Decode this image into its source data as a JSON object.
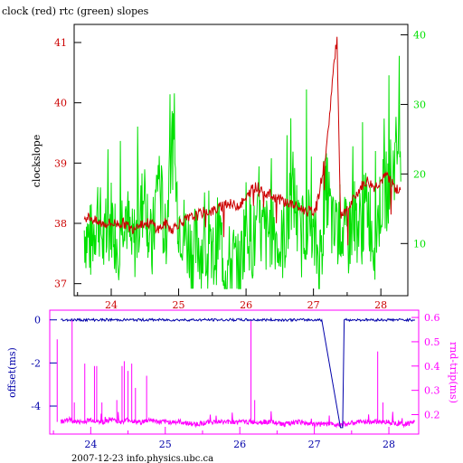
{
  "colors": {
    "background": "#ffffff",
    "axis": "#000000",
    "clock": "#cc0000",
    "rtc": "#00e000",
    "offset": "#0000aa",
    "rndtrip": "#ff00ff"
  },
  "footer": "2007-12-23 info.physics.ubc.ca",
  "chart_data": [
    {
      "type": "line",
      "title": "clock (red) rtc (green) slopes",
      "ylabel": "clockslope",
      "xlim": [
        23.45,
        28.4
      ],
      "ylim": [
        36.8,
        41.3
      ],
      "y2lim": [
        2.5,
        41.5
      ],
      "x_ticks": [
        "24",
        "25",
        "26",
        "27",
        "28"
      ],
      "y_ticks": [
        "37",
        "38",
        "39",
        "40",
        "41"
      ],
      "y2_ticks": [
        "10",
        "20",
        "30",
        "40"
      ],
      "grid": false,
      "series": [
        {
          "axis": "left",
          "x": [
            23.6,
            23.7,
            23.8,
            23.9,
            24.0,
            24.1,
            24.2,
            24.3,
            24.4,
            24.5,
            24.6,
            24.7,
            24.8,
            24.9,
            25.0,
            25.1,
            25.2,
            25.3,
            25.4,
            25.5,
            25.6,
            25.7,
            25.8,
            25.9,
            26.0,
            26.1,
            26.2,
            26.3,
            26.4,
            26.5,
            26.6,
            26.7,
            26.8,
            26.9,
            27.0,
            27.05,
            27.1,
            27.2,
            27.3,
            27.35,
            27.4,
            27.5,
            27.6,
            27.7,
            27.8,
            27.9,
            28.0,
            28.1,
            28.2,
            28.3
          ],
          "y": [
            38.1,
            38.1,
            38.0,
            38.0,
            38.0,
            38.0,
            38.0,
            37.9,
            38.0,
            38.0,
            38.0,
            37.9,
            38.0,
            37.9,
            38.0,
            38.05,
            38.1,
            38.15,
            38.2,
            38.2,
            38.25,
            38.35,
            38.3,
            38.3,
            38.4,
            38.6,
            38.6,
            38.5,
            38.45,
            38.4,
            38.35,
            38.3,
            38.25,
            38.2,
            38.2,
            38.3,
            38.6,
            39.3,
            40.6,
            41.05,
            38.1,
            38.2,
            38.4,
            38.6,
            38.7,
            38.6,
            38.7,
            38.8,
            38.6,
            38.5
          ]
        },
        {
          "axis": "right",
          "x": [
            23.6,
            23.7,
            23.8,
            23.9,
            24.0,
            24.1,
            24.2,
            24.3,
            24.4,
            24.5,
            24.6,
            24.7,
            24.8,
            24.9,
            25.0,
            25.1,
            25.2,
            25.3,
            25.4,
            25.5,
            25.6,
            25.7,
            25.8,
            25.9,
            26.0,
            26.1,
            26.2,
            26.3,
            26.4,
            26.5,
            26.6,
            26.7,
            26.8,
            26.9,
            27.0,
            27.1,
            27.2,
            27.3,
            27.4,
            27.5,
            27.6,
            27.7,
            27.8,
            27.9,
            28.0,
            28.1,
            28.2,
            28.3
          ],
          "y": [
            12,
            10,
            15,
            9,
            14,
            10,
            16,
            9,
            12,
            18,
            8,
            21,
            10,
            25,
            14,
            11,
            9,
            10,
            8,
            7,
            12,
            6,
            8,
            5,
            14,
            10,
            12,
            11,
            13,
            9,
            12,
            18,
            10,
            14,
            10,
            8,
            18,
            11,
            13,
            10,
            14,
            12,
            16,
            10,
            16,
            18,
            22,
            25
          ]
        }
      ]
    },
    {
      "type": "line",
      "xlim": [
        23.45,
        28.4
      ],
      "ylim": [
        -5.3,
        0.45
      ],
      "y2lim": [
        0.12,
        0.63
      ],
      "x_ticks": [
        "24",
        "25",
        "26",
        "27",
        "28"
      ],
      "y_ticks": [
        "0",
        "-2",
        "-4"
      ],
      "y2_ticks": [
        "0.2",
        "0.3",
        "0.4",
        "0.5",
        "0.6"
      ],
      "ylabel": "offset(ms)",
      "y2label": "rnd-trip(ms)",
      "grid": false,
      "series": [
        {
          "axis": "left",
          "x": [
            23.6,
            23.8,
            24.0,
            24.2,
            24.4,
            24.6,
            24.8,
            25.0,
            25.2,
            25.4,
            25.6,
            25.8,
            26.0,
            26.2,
            26.4,
            26.6,
            26.8,
            27.0,
            27.1,
            27.35,
            27.38,
            27.4,
            27.6,
            27.8,
            28.0,
            28.2,
            28.35
          ],
          "y": [
            0.0,
            -0.02,
            0.0,
            -0.03,
            0.0,
            -0.02,
            0.0,
            -0.04,
            0.0,
            -0.02,
            0.0,
            -0.03,
            0.0,
            -0.01,
            0.0,
            -0.02,
            0.0,
            -0.01,
            0.0,
            -5.0,
            -5.0,
            0.0,
            0.0,
            -0.02,
            0.0,
            -0.01,
            0.0
          ]
        },
        {
          "axis": "right",
          "x": [
            23.6,
            23.7,
            23.8,
            23.9,
            24.0,
            24.1,
            24.2,
            24.3,
            24.4,
            24.5,
            24.6,
            24.7,
            24.8,
            24.9,
            25.0,
            25.2,
            25.4,
            25.6,
            25.8,
            26.0,
            26.2,
            26.4,
            26.6,
            26.8,
            27.0,
            27.2,
            27.4,
            27.6,
            27.8,
            28.0,
            28.2,
            28.35
          ],
          "y": [
            0.17,
            0.18,
            0.17,
            0.17,
            0.18,
            0.17,
            0.17,
            0.18,
            0.17,
            0.18,
            0.17,
            0.17,
            0.18,
            0.17,
            0.17,
            0.17,
            0.16,
            0.17,
            0.17,
            0.17,
            0.17,
            0.17,
            0.16,
            0.17,
            0.16,
            0.16,
            0.16,
            0.17,
            0.17,
            0.17,
            0.16,
            0.17
          ]
        }
      ],
      "spikes": [
        {
          "x": 23.55,
          "y": 0.51
        },
        {
          "x": 23.75,
          "y": 0.59
        },
        {
          "x": 23.78,
          "y": 0.25
        },
        {
          "x": 23.92,
          "y": 0.41
        },
        {
          "x": 24.05,
          "y": 0.4
        },
        {
          "x": 24.08,
          "y": 0.4
        },
        {
          "x": 24.15,
          "y": 0.25
        },
        {
          "x": 24.35,
          "y": 0.26
        },
        {
          "x": 24.42,
          "y": 0.4
        },
        {
          "x": 24.45,
          "y": 0.42
        },
        {
          "x": 24.5,
          "y": 0.38
        },
        {
          "x": 24.55,
          "y": 0.41
        },
        {
          "x": 24.6,
          "y": 0.31
        },
        {
          "x": 24.75,
          "y": 0.36
        },
        {
          "x": 26.15,
          "y": 0.59
        },
        {
          "x": 26.2,
          "y": 0.26
        },
        {
          "x": 27.85,
          "y": 0.46
        },
        {
          "x": 27.92,
          "y": 0.25
        }
      ]
    }
  ]
}
